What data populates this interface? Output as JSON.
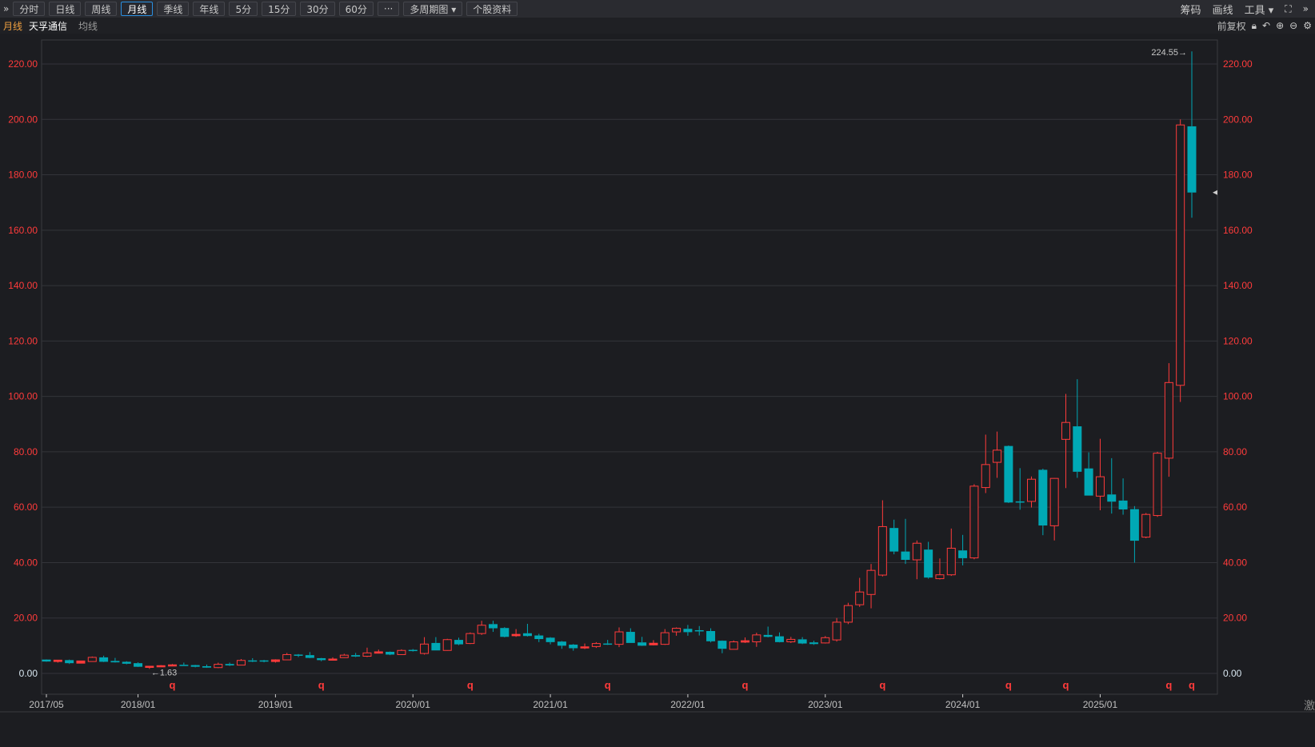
{
  "toolbar": {
    "collapse_icon": "double-chevron-right",
    "buttons": [
      "分时",
      "日线",
      "周线",
      "月线",
      "季线",
      "年线",
      "5分",
      "15分",
      "30分",
      "60分",
      "···",
      "多周期图 ▾",
      "个股资料"
    ],
    "active": "月线",
    "right": {
      "chips": "筹码",
      "draw": "画线",
      "tools": "工具 ▾",
      "fullscreen_icon": "expand-icon",
      "more_icon": "double-chevron-right"
    }
  },
  "subbar": {
    "period": "月线",
    "stock_name": "天孚通信",
    "indicator": "均线",
    "adjust": "前复权",
    "icons": [
      "lock",
      "undo",
      "zoom-in",
      "zoom-out",
      "gear"
    ]
  },
  "footer_text": "激",
  "colors": {
    "up": "#ff3b3b",
    "down": "#00a8b5",
    "axis_label": "#ff3b3b",
    "grid": "#33343a",
    "background": "#1c1d21",
    "period_label": "#f0a040"
  },
  "chart_data": {
    "type": "candlestick",
    "title": "",
    "ylim": [
      0,
      220
    ],
    "y_ticks": [
      "0.00",
      "20.00",
      "40.00",
      "60.00",
      "80.00",
      "100.00",
      "120.00",
      "140.00",
      "160.00",
      "180.00",
      "200.00",
      "220.00"
    ],
    "x_ticks": [
      "2017/05",
      "2018/01",
      "2019/01",
      "2020/01",
      "2021/01",
      "2022/01",
      "2023/01",
      "2024/01",
      "2025/01"
    ],
    "grid": true,
    "annotations": {
      "max_label": "224.55→",
      "min_label": "←1.63",
      "marker": "q",
      "marker_months": [
        "2018/04",
        "2019/05",
        "2020/06",
        "2021/06",
        "2022/06",
        "2023/06",
        "2024/05",
        "2024/10",
        "2025/07",
        "2025/09"
      ]
    },
    "candles": [
      {
        "d": "2017/05",
        "o": 5.0,
        "h": 5.1,
        "l": 4.2,
        "c": 4.3
      },
      {
        "d": "2017/06",
        "o": 4.3,
        "h": 4.9,
        "l": 3.9,
        "c": 4.8
      },
      {
        "d": "2017/07",
        "o": 4.8,
        "h": 5.0,
        "l": 3.4,
        "c": 3.7
      },
      {
        "d": "2017/08",
        "o": 3.7,
        "h": 4.6,
        "l": 3.6,
        "c": 4.5
      },
      {
        "d": "2017/09",
        "o": 4.3,
        "h": 6.1,
        "l": 4.2,
        "c": 5.8
      },
      {
        "d": "2017/10",
        "o": 5.8,
        "h": 6.4,
        "l": 4.1,
        "c": 4.2
      },
      {
        "d": "2017/11",
        "o": 4.5,
        "h": 5.6,
        "l": 3.9,
        "c": 4.0
      },
      {
        "d": "2017/12",
        "o": 4.2,
        "h": 4.4,
        "l": 3.3,
        "c": 3.5
      },
      {
        "d": "2018/01",
        "o": 3.7,
        "h": 4.0,
        "l": 2.3,
        "c": 2.4
      },
      {
        "d": "2018/02",
        "o": 2.4,
        "h": 2.7,
        "l": 1.63,
        "c": 2.6
      },
      {
        "d": "2018/03",
        "o": 2.4,
        "h": 3.0,
        "l": 2.3,
        "c": 2.8
      },
      {
        "d": "2018/04",
        "o": 2.9,
        "h": 3.4,
        "l": 2.8,
        "c": 3.1
      },
      {
        "d": "2018/05",
        "o": 3.1,
        "h": 3.9,
        "l": 2.8,
        "c": 2.9
      },
      {
        "d": "2018/06",
        "o": 3.0,
        "h": 3.1,
        "l": 2.2,
        "c": 2.4
      },
      {
        "d": "2018/07",
        "o": 2.6,
        "h": 3.2,
        "l": 2.0,
        "c": 2.1
      },
      {
        "d": "2018/08",
        "o": 2.1,
        "h": 3.9,
        "l": 1.9,
        "c": 3.3
      },
      {
        "d": "2018/09",
        "o": 3.4,
        "h": 3.9,
        "l": 2.7,
        "c": 2.9
      },
      {
        "d": "2018/10",
        "o": 3.0,
        "h": 5.2,
        "l": 2.9,
        "c": 4.7
      },
      {
        "d": "2018/11",
        "o": 4.7,
        "h": 5.5,
        "l": 4.1,
        "c": 4.3
      },
      {
        "d": "2018/12",
        "o": 4.7,
        "h": 4.9,
        "l": 4.0,
        "c": 4.3
      },
      {
        "d": "2019/01",
        "o": 4.3,
        "h": 5.1,
        "l": 3.9,
        "c": 4.9
      },
      {
        "d": "2019/02",
        "o": 4.9,
        "h": 7.4,
        "l": 4.9,
        "c": 6.8
      },
      {
        "d": "2019/03",
        "o": 6.8,
        "h": 7.0,
        "l": 5.9,
        "c": 6.4
      },
      {
        "d": "2019/04",
        "o": 6.6,
        "h": 7.7,
        "l": 5.5,
        "c": 5.6
      },
      {
        "d": "2019/05",
        "o": 5.5,
        "h": 5.6,
        "l": 4.4,
        "c": 4.8
      },
      {
        "d": "2019/06",
        "o": 4.8,
        "h": 5.8,
        "l": 4.7,
        "c": 5.2
      },
      {
        "d": "2019/07",
        "o": 5.7,
        "h": 7.1,
        "l": 5.6,
        "c": 6.6
      },
      {
        "d": "2019/08",
        "o": 6.6,
        "h": 7.4,
        "l": 5.9,
        "c": 6.1
      },
      {
        "d": "2019/09",
        "o": 6.2,
        "h": 9.3,
        "l": 5.9,
        "c": 7.4
      },
      {
        "d": "2019/10",
        "o": 7.3,
        "h": 8.6,
        "l": 7.2,
        "c": 7.8
      },
      {
        "d": "2019/11",
        "o": 7.8,
        "h": 7.9,
        "l": 6.6,
        "c": 6.8
      },
      {
        "d": "2019/12",
        "o": 6.8,
        "h": 8.7,
        "l": 6.7,
        "c": 8.3
      },
      {
        "d": "2020/01",
        "o": 8.5,
        "h": 8.8,
        "l": 7.9,
        "c": 8.1
      },
      {
        "d": "2020/02",
        "o": 7.2,
        "h": 13.1,
        "l": 6.8,
        "c": 10.6
      },
      {
        "d": "2020/03",
        "o": 11.0,
        "h": 13.1,
        "l": 8.3,
        "c": 8.3
      },
      {
        "d": "2020/04",
        "o": 8.3,
        "h": 12.5,
        "l": 8.2,
        "c": 12.2
      },
      {
        "d": "2020/05",
        "o": 12.1,
        "h": 12.9,
        "l": 10.2,
        "c": 10.5
      },
      {
        "d": "2020/06",
        "o": 10.8,
        "h": 14.8,
        "l": 10.6,
        "c": 14.4
      },
      {
        "d": "2020/07",
        "o": 14.4,
        "h": 19.0,
        "l": 13.9,
        "c": 17.4
      },
      {
        "d": "2020/08",
        "o": 17.8,
        "h": 19.0,
        "l": 15.0,
        "c": 16.3
      },
      {
        "d": "2020/09",
        "o": 16.4,
        "h": 16.7,
        "l": 13.0,
        "c": 13.2
      },
      {
        "d": "2020/10",
        "o": 13.6,
        "h": 16.0,
        "l": 13.2,
        "c": 14.1
      },
      {
        "d": "2020/11",
        "o": 14.5,
        "h": 17.9,
        "l": 13.3,
        "c": 13.5
      },
      {
        "d": "2020/12",
        "o": 13.7,
        "h": 14.3,
        "l": 11.3,
        "c": 12.4
      },
      {
        "d": "2021/01",
        "o": 12.9,
        "h": 13.1,
        "l": 10.5,
        "c": 11.3
      },
      {
        "d": "2021/02",
        "o": 11.5,
        "h": 11.7,
        "l": 8.9,
        "c": 10.0
      },
      {
        "d": "2021/03",
        "o": 10.4,
        "h": 10.6,
        "l": 8.2,
        "c": 9.1
      },
      {
        "d": "2021/04",
        "o": 9.2,
        "h": 10.8,
        "l": 8.8,
        "c": 9.6
      },
      {
        "d": "2021/05",
        "o": 9.7,
        "h": 11.3,
        "l": 9.2,
        "c": 10.8
      },
      {
        "d": "2021/06",
        "o": 10.8,
        "h": 12.1,
        "l": 10.3,
        "c": 10.5
      },
      {
        "d": "2021/07",
        "o": 10.5,
        "h": 16.6,
        "l": 9.5,
        "c": 15.0
      },
      {
        "d": "2021/08",
        "o": 15.0,
        "h": 16.3,
        "l": 11.0,
        "c": 11.0
      },
      {
        "d": "2021/09",
        "o": 11.2,
        "h": 13.2,
        "l": 9.9,
        "c": 10.0
      },
      {
        "d": "2021/10",
        "o": 10.3,
        "h": 12.0,
        "l": 10.1,
        "c": 10.9
      },
      {
        "d": "2021/11",
        "o": 10.5,
        "h": 16.0,
        "l": 10.3,
        "c": 14.7
      },
      {
        "d": "2021/12",
        "o": 15.0,
        "h": 16.6,
        "l": 13.6,
        "c": 16.3
      },
      {
        "d": "2022/01",
        "o": 16.1,
        "h": 17.5,
        "l": 13.6,
        "c": 14.9
      },
      {
        "d": "2022/02",
        "o": 15.6,
        "h": 17.1,
        "l": 13.7,
        "c": 15.2
      },
      {
        "d": "2022/03",
        "o": 15.3,
        "h": 16.3,
        "l": 11.2,
        "c": 11.6
      },
      {
        "d": "2022/04",
        "o": 11.8,
        "h": 11.9,
        "l": 7.3,
        "c": 8.9
      },
      {
        "d": "2022/05",
        "o": 8.7,
        "h": 11.9,
        "l": 8.7,
        "c": 11.4
      },
      {
        "d": "2022/06",
        "o": 11.3,
        "h": 13.0,
        "l": 11.0,
        "c": 11.8
      },
      {
        "d": "2022/07",
        "o": 11.4,
        "h": 14.7,
        "l": 9.6,
        "c": 13.9
      },
      {
        "d": "2022/08",
        "o": 13.9,
        "h": 16.9,
        "l": 13.0,
        "c": 13.2
      },
      {
        "d": "2022/09",
        "o": 13.4,
        "h": 14.8,
        "l": 11.2,
        "c": 11.3
      },
      {
        "d": "2022/10",
        "o": 11.4,
        "h": 13.2,
        "l": 11.0,
        "c": 12.3
      },
      {
        "d": "2022/11",
        "o": 12.3,
        "h": 13.1,
        "l": 10.6,
        "c": 10.8
      },
      {
        "d": "2022/12",
        "o": 11.2,
        "h": 11.8,
        "l": 10.3,
        "c": 10.6
      },
      {
        "d": "2023/01",
        "o": 11.0,
        "h": 13.5,
        "l": 10.8,
        "c": 12.9
      },
      {
        "d": "2023/02",
        "o": 12.1,
        "h": 20.0,
        "l": 11.5,
        "c": 18.5
      },
      {
        "d": "2023/03",
        "o": 18.5,
        "h": 25.5,
        "l": 17.8,
        "c": 24.5
      },
      {
        "d": "2023/04",
        "o": 24.8,
        "h": 34.5,
        "l": 24.0,
        "c": 29.4
      },
      {
        "d": "2023/05",
        "o": 28.5,
        "h": 39.5,
        "l": 23.5,
        "c": 37.2
      },
      {
        "d": "2023/06",
        "o": 35.5,
        "h": 62.5,
        "l": 35.0,
        "c": 53.0
      },
      {
        "d": "2023/07",
        "o": 52.5,
        "h": 55.5,
        "l": 43.0,
        "c": 44.0
      },
      {
        "d": "2023/08",
        "o": 44.0,
        "h": 55.8,
        "l": 39.5,
        "c": 41.0
      },
      {
        "d": "2023/09",
        "o": 41.0,
        "h": 48.0,
        "l": 34.0,
        "c": 47.0
      },
      {
        "d": "2023/10",
        "o": 44.7,
        "h": 47.5,
        "l": 34.2,
        "c": 34.6
      },
      {
        "d": "2023/11",
        "o": 34.2,
        "h": 41.5,
        "l": 33.9,
        "c": 35.6
      },
      {
        "d": "2023/12",
        "o": 35.6,
        "h": 52.3,
        "l": 35.2,
        "c": 45.2
      },
      {
        "d": "2024/01",
        "o": 44.4,
        "h": 50.0,
        "l": 39.0,
        "c": 41.6
      },
      {
        "d": "2024/02",
        "o": 41.7,
        "h": 68.3,
        "l": 41.2,
        "c": 67.6
      },
      {
        "d": "2024/03",
        "o": 67.1,
        "h": 86.2,
        "l": 65.1,
        "c": 75.4
      },
      {
        "d": "2024/04",
        "o": 76.2,
        "h": 87.3,
        "l": 70.6,
        "c": 80.6
      },
      {
        "d": "2024/05",
        "o": 82.1,
        "h": 82.3,
        "l": 61.5,
        "c": 61.7
      },
      {
        "d": "2024/06",
        "o": 62.1,
        "h": 74.1,
        "l": 59.1,
        "c": 61.8
      },
      {
        "d": "2024/07",
        "o": 62.1,
        "h": 71.1,
        "l": 59.9,
        "c": 70.1
      },
      {
        "d": "2024/08",
        "o": 73.5,
        "h": 73.9,
        "l": 49.9,
        "c": 53.4
      },
      {
        "d": "2024/09",
        "o": 53.3,
        "h": 70.5,
        "l": 48.0,
        "c": 70.4
      },
      {
        "d": "2024/10",
        "o": 84.5,
        "h": 100.9,
        "l": 66.9,
        "c": 90.6
      },
      {
        "d": "2024/11",
        "o": 89.2,
        "h": 106.2,
        "l": 70.6,
        "c": 72.8
      },
      {
        "d": "2024/12",
        "o": 74.0,
        "h": 79.8,
        "l": 64.2,
        "c": 64.2
      },
      {
        "d": "2025/01",
        "o": 64.0,
        "h": 84.7,
        "l": 58.9,
        "c": 71.0
      },
      {
        "d": "2025/02",
        "o": 64.6,
        "h": 77.7,
        "l": 57.7,
        "c": 62.0
      },
      {
        "d": "2025/03",
        "o": 62.4,
        "h": 70.4,
        "l": 57.3,
        "c": 59.2
      },
      {
        "d": "2025/04",
        "o": 59.3,
        "h": 60.4,
        "l": 40.0,
        "c": 47.9
      },
      {
        "d": "2025/05",
        "o": 49.2,
        "h": 57.9,
        "l": 48.8,
        "c": 57.4
      },
      {
        "d": "2025/06",
        "o": 57.0,
        "h": 80.0,
        "l": 56.5,
        "c": 79.5
      },
      {
        "d": "2025/07",
        "o": 77.7,
        "h": 112.0,
        "l": 71.0,
        "c": 105.0
      },
      {
        "d": "2025/08",
        "o": 104.0,
        "h": 200.0,
        "l": 98.0,
        "c": 198.0
      },
      {
        "d": "2025/09",
        "o": 197.5,
        "h": 224.55,
        "l": 164.5,
        "c": 173.6
      }
    ]
  }
}
